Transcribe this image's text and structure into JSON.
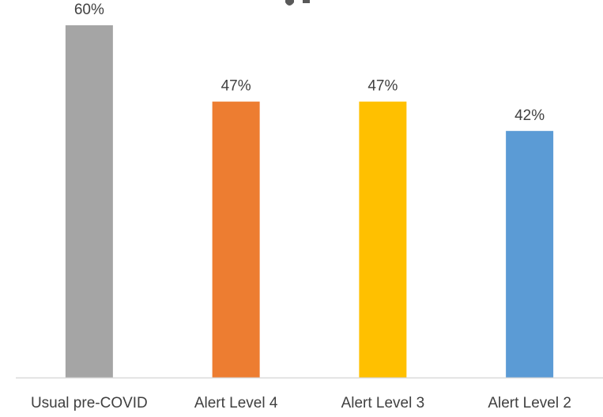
{
  "chart_data": {
    "type": "bar",
    "categories": [
      "Usual pre-COVID",
      "Alert Level 4",
      "Alert Level 3",
      "Alert Level 2"
    ],
    "values": [
      60,
      47,
      47,
      42
    ],
    "data_labels": [
      "60%",
      "47%",
      "47%",
      "42%"
    ],
    "colors": [
      "#a5a5a5",
      "#ed7d31",
      "#ffc000",
      "#5b9bd5"
    ],
    "value_unit": "%",
    "ylim": [
      0,
      60
    ],
    "grid": false,
    "legend": "none"
  }
}
